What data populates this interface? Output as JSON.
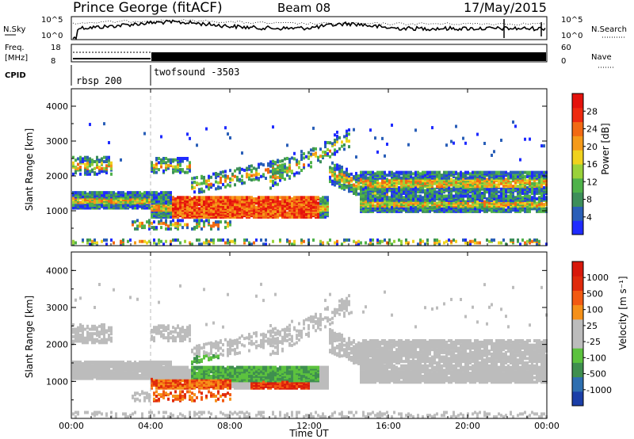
{
  "header": {
    "station": "Prince George (fitACF)",
    "beam": "Beam 08",
    "date": "17/May/2015"
  },
  "top_panel": {
    "left_label": "N.Sky",
    "right_label": "N.Search",
    "left_ticks": [
      "10^5",
      "10^0"
    ],
    "right_ticks": [
      "10^5",
      "10^0"
    ]
  },
  "freq_panel": {
    "left_label_1": "Freq.",
    "left_label_2": "[MHz]",
    "right_label": "Nave",
    "left_ticks": [
      "18",
      "8"
    ],
    "right_ticks": [
      "60",
      "0"
    ]
  },
  "cpid": {
    "label": "CPID",
    "mode_1": "rbsp 200",
    "mode_2": "twofsound -3503"
  },
  "x_axis": {
    "label": "Time UT",
    "ticks": [
      "00:00",
      "04:00",
      "08:00",
      "12:00",
      "16:00",
      "20:00",
      "00:00"
    ]
  },
  "colors": {
    "power_scale": [
      "#1f2bff",
      "#2a5fb8",
      "#3d8f5a",
      "#4fb24a",
      "#9ad23a",
      "#f0d21e",
      "#f59a19",
      "#f26a13",
      "#ee2a0f",
      "#e4120c"
    ],
    "velocity_scale": [
      "#1b3fa8",
      "#2e6fb0",
      "#3f8f4f",
      "#5cc23e",
      "#bcbcbc",
      "#bcbcbc",
      "#f59019",
      "#f25a12",
      "#e02a0c",
      "#d8180b"
    ]
  },
  "chart_data": [
    {
      "type": "heatmap",
      "name": "power",
      "xlabel": "Time UT",
      "ylabel": "Slant Range [km]",
      "xlim": [
        0,
        24
      ],
      "ylim": [
        0,
        4500
      ],
      "yticks": [
        "1000",
        "2000",
        "3000",
        "4000"
      ],
      "colorbar": {
        "label": "Power [dB]",
        "range": [
          0,
          32
        ],
        "ticks": [
          "28",
          "24",
          "20",
          "16",
          "12",
          "8",
          "4"
        ]
      }
    },
    {
      "type": "heatmap",
      "name": "velocity",
      "xlabel": "Time UT",
      "ylabel": "Slant Range [km]",
      "xlim": [
        0,
        24
      ],
      "ylim": [
        0,
        4500
      ],
      "yticks": [
        "1000",
        "2000",
        "3000",
        "4000"
      ],
      "colorbar": {
        "label": "Velocity [m s⁻¹]",
        "ticks": [
          "1000",
          "500",
          "100",
          "25",
          "-25",
          "-100",
          "-500",
          "-1000"
        ]
      }
    }
  ]
}
